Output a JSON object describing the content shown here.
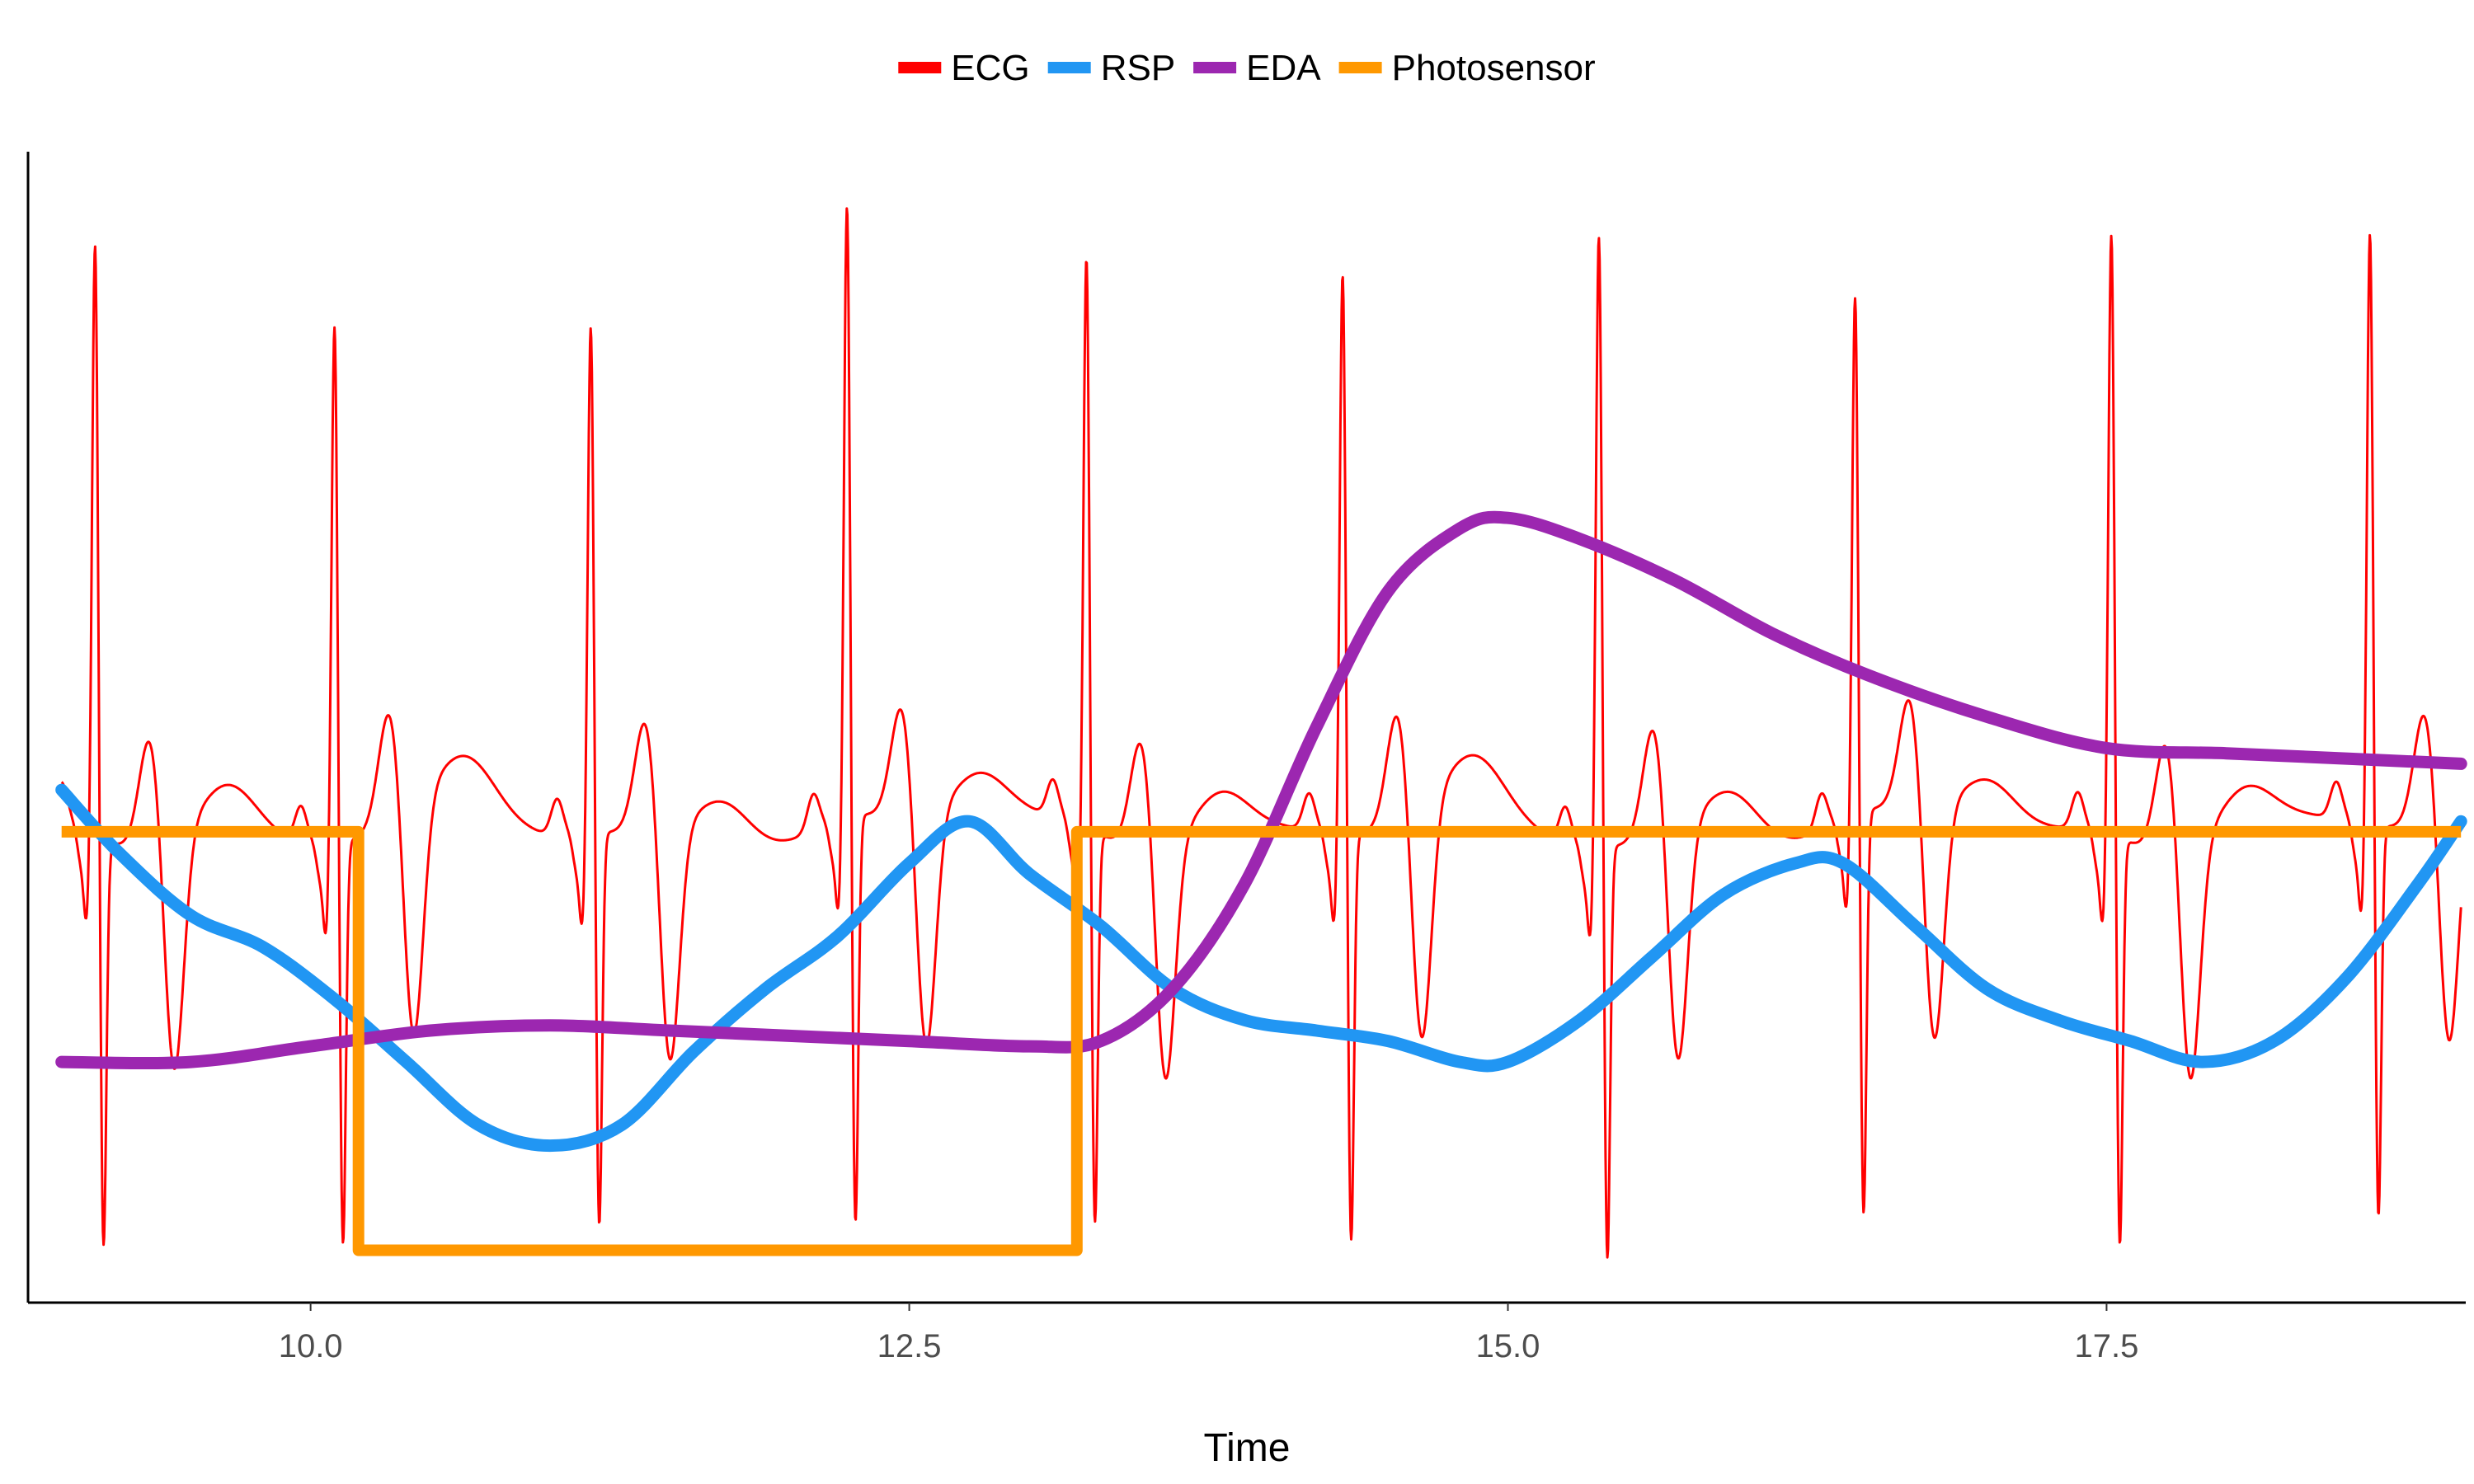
{
  "chart_data": {
    "type": "line",
    "xlabel": "Time",
    "ylabel": "",
    "xlim": [
      8.82,
      19.0
    ],
    "ylim": [
      -0.05,
      1.05
    ],
    "x_ticks": [
      10.0,
      12.5,
      15.0,
      17.5
    ],
    "x_tick_labels": [
      "10.0",
      "12.5",
      "15.0",
      "17.5"
    ],
    "grid": false,
    "legend_position": "top",
    "series": [
      {
        "name": "ECG",
        "color": "#FF0000",
        "stroke": "thin",
        "baseline": 0.4,
        "r_peak_times": [
          9.1,
          10.1,
          11.17,
          12.24,
          13.24,
          14.31,
          15.38,
          16.45,
          17.52,
          18.6
        ],
        "r_peak_values": [
          0.97,
          0.9,
          0.89,
          0.99,
          0.95,
          0.94,
          0.99,
          0.9,
          0.98,
          0.97
        ],
        "s_trough_values": [
          0.005,
          0.01,
          0.02,
          0.005,
          0.02,
          0.005,
          0.0,
          0.01,
          0.005,
          0.02
        ]
      },
      {
        "name": "RSP",
        "color": "#2196F3",
        "stroke": "thick",
        "x": [
          8.96,
          9.2,
          9.5,
          9.8,
          10.1,
          10.4,
          10.7,
          11.0,
          11.3,
          11.6,
          11.9,
          12.2,
          12.5,
          12.75,
          13.0,
          13.3,
          13.6,
          13.9,
          14.2,
          14.5,
          14.8,
          15.0,
          15.3,
          15.6,
          15.9,
          16.2,
          16.4,
          16.7,
          17.0,
          17.3,
          17.6,
          17.9,
          18.2,
          18.5,
          18.8,
          18.98
        ],
        "values": [
          0.44,
          0.38,
          0.32,
          0.29,
          0.24,
          0.18,
          0.12,
          0.1,
          0.12,
          0.19,
          0.25,
          0.3,
          0.37,
          0.41,
          0.36,
          0.31,
          0.25,
          0.22,
          0.21,
          0.2,
          0.18,
          0.18,
          0.22,
          0.28,
          0.34,
          0.37,
          0.37,
          0.31,
          0.25,
          0.22,
          0.2,
          0.18,
          0.2,
          0.26,
          0.35,
          0.41
        ]
      },
      {
        "name": "EDA",
        "color": "#9C27B0",
        "stroke": "thick",
        "x": [
          8.96,
          9.5,
          10.0,
          10.5,
          11.0,
          11.5,
          12.0,
          12.5,
          13.0,
          13.3,
          13.6,
          13.9,
          14.2,
          14.5,
          14.8,
          15.0,
          15.3,
          15.7,
          16.1,
          16.5,
          17.0,
          17.5,
          18.0,
          18.5,
          18.98
        ],
        "values": [
          0.18,
          0.18,
          0.195,
          0.21,
          0.215,
          0.21,
          0.205,
          0.2,
          0.195,
          0.2,
          0.25,
          0.35,
          0.5,
          0.63,
          0.69,
          0.7,
          0.68,
          0.64,
          0.59,
          0.55,
          0.51,
          0.48,
          0.475,
          0.47,
          0.465
        ]
      },
      {
        "name": "Photosensor",
        "color": "#FF9800",
        "stroke": "thick",
        "x": [
          8.96,
          10.2,
          10.2,
          13.2,
          13.2,
          18.98
        ],
        "values": [
          0.4,
          0.4,
          0.0,
          0.0,
          0.4,
          0.4
        ]
      }
    ]
  }
}
